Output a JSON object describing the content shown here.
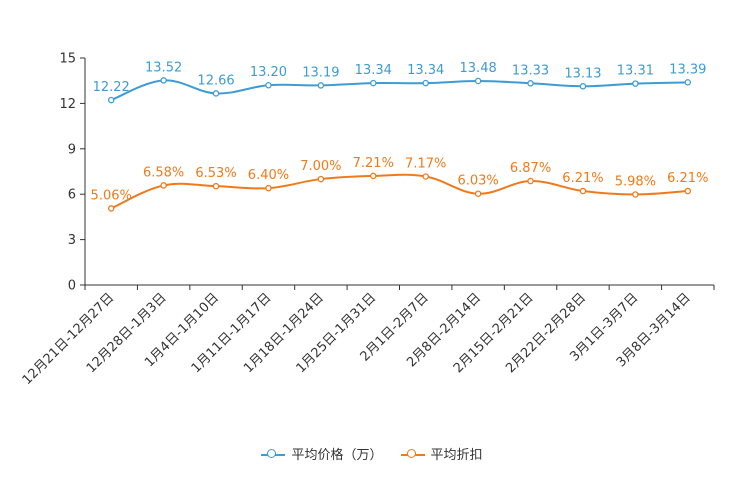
{
  "chart_data": {
    "type": "line",
    "categories": [
      "12月21日-12月27日",
      "12月28日-1月3日",
      "1月4日-1月10日",
      "1月11日-1月17日",
      "1月18日-1月24日",
      "1月25日-1月31日",
      "2月1日-2月7日",
      "2月8日-2月14日",
      "2月15日-2月21日",
      "2月22日-2月28日",
      "3月1日-3月7日",
      "3月8日-3月14日"
    ],
    "ylim": [
      0,
      15
    ],
    "yticks": [
      "0",
      "3",
      "6",
      "9",
      "12",
      "15"
    ],
    "series": [
      {
        "name": "平均价格（万）",
        "color": "#3d9cd2",
        "values": [
          12.22,
          13.52,
          12.66,
          13.2,
          13.19,
          13.34,
          13.34,
          13.48,
          13.33,
          13.13,
          13.31,
          13.39
        ],
        "labels": [
          "12.22",
          "13.52",
          "12.66",
          "13.20",
          "13.19",
          "13.34",
          "13.34",
          "13.48",
          "13.33",
          "13.13",
          "13.31",
          "13.39"
        ]
      },
      {
        "name": "平均折扣",
        "color": "#f07a1a",
        "values": [
          5.06,
          6.58,
          6.53,
          6.4,
          7.0,
          7.21,
          7.17,
          6.03,
          6.87,
          6.21,
          5.98,
          6.21
        ],
        "labels": [
          "5.06%",
          "6.58%",
          "6.53%",
          "6.40%",
          "7.00%",
          "7.21%",
          "7.17%",
          "6.03%",
          "6.87%",
          "6.21%",
          "5.98%",
          "6.21%"
        ]
      }
    ]
  }
}
